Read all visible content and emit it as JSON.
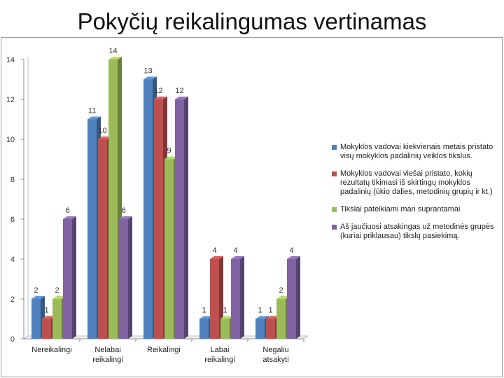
{
  "title": "Pokyčių reikalingumas vertinamas",
  "chart_data": {
    "type": "bar",
    "categories": [
      [
        "Nereikalingi"
      ],
      [
        "Nelabai",
        "reikalingi"
      ],
      [
        "Reikalingi"
      ],
      [
        "Labai",
        "reikalingi"
      ],
      [
        "Negaliu",
        "atsakyti"
      ]
    ],
    "series": [
      {
        "name": "Mokyklos vadovai kiekvienais metais pristato visų mokyklos padalinių veiklos tikslus.",
        "color": "#4f81bd",
        "values": [
          2,
          11,
          13,
          1,
          1
        ]
      },
      {
        "name": "Mokyklos vadovai viešai pristato, kokių rezultatų tikimasi iš skirtingų mokyklos padalinių (ūkio dalies, metodinių grupių ir kt.)",
        "color": "#c0504d",
        "values": [
          1,
          10,
          12,
          4,
          1
        ]
      },
      {
        "name": "Tikslai pateikiami man suprantamai",
        "color": "#9bbb59",
        "values": [
          2,
          14,
          9,
          1,
          2
        ]
      },
      {
        "name": "Aš jaučiuosi atsakingas už metodinės grupės (kuriai priklausau) tikslų pasiekimą.",
        "color": "#8064a2",
        "values": [
          6,
          6,
          12,
          4,
          4
        ]
      }
    ],
    "ylim": [
      0,
      14
    ],
    "yticks": [
      "0",
      "2",
      "4",
      "6",
      "8",
      "10",
      "12",
      "14"
    ],
    "grid": false,
    "legend_position": "right"
  }
}
